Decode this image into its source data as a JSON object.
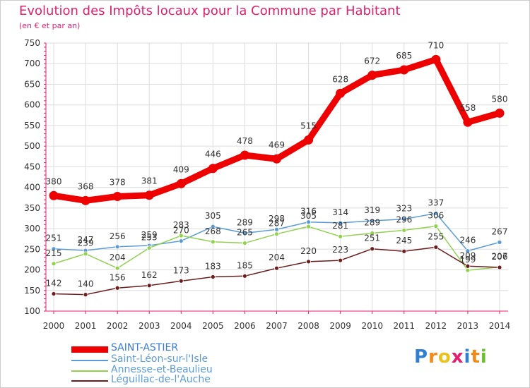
{
  "title": "Evolution des Impôts locaux pour la Commune par Habitant",
  "subtitle": "(en € et par an)",
  "logo": {
    "text": "Proxiti",
    "letters": [
      {
        "ch": "P",
        "color": "#2f7fd2"
      },
      {
        "ch": "r",
        "color": "#f08a1c"
      },
      {
        "ch": "o",
        "color": "#e9c21d"
      },
      {
        "ch": "x",
        "color": "#e0206e"
      },
      {
        "ch": "i",
        "color": "#2f7fd2"
      },
      {
        "ch": "t",
        "color": "#f08a1c"
      },
      {
        "ch": "i",
        "color": "#6cbf2e"
      }
    ]
  },
  "chart_data": {
    "type": "line",
    "title": "Evolution des Impôts locaux pour la Commune par Habitant",
    "subtitle": "(en € et par an)",
    "x": [
      "2000",
      "2001",
      "2002",
      "2003",
      "2004",
      "2005",
      "2006",
      "2007",
      "2008",
      "2009",
      "2010",
      "2011",
      "2012",
      "2013",
      "2014"
    ],
    "ylim": [
      100,
      750
    ],
    "yticks": [
      "100",
      "150",
      "200",
      "250",
      "300",
      "350",
      "400",
      "450",
      "500",
      "550",
      "600",
      "650",
      "700",
      "750"
    ],
    "grid": true,
    "legend": "bottom-left",
    "series": [
      {
        "name": "SAINT-ASTIER",
        "color": "#ee0000",
        "values": [
          380,
          368,
          378,
          381,
          409,
          446,
          478,
          469,
          515,
          628,
          672,
          685,
          710,
          558,
          580
        ],
        "labels": [
          "380",
          "368",
          "378",
          "381",
          "409",
          "446",
          "478",
          "469",
          "515",
          "628",
          "672",
          "685",
          "710",
          "558",
          "580"
        ]
      },
      {
        "name": "Saint-Léon-sur-l'Isle",
        "color": "#5b9bd5",
        "values": [
          251,
          247,
          256,
          259,
          270,
          305,
          289,
          298,
          316,
          314,
          319,
          323,
          337,
          246,
          267
        ],
        "labels": [
          "251",
          "247",
          "256",
          "259",
          "270",
          "305",
          "289",
          "298",
          "316",
          "314",
          "319",
          "323",
          "337",
          "246",
          "267"
        ]
      },
      {
        "name": "Annesse-et-Beaulieu",
        "color": "#92d050",
        "values": [
          215,
          239,
          204,
          253,
          283,
          268,
          265,
          287,
          305,
          281,
          289,
          296,
          306,
          199,
          207
        ],
        "labels": [
          "215",
          "239",
          "204",
          "253",
          "283",
          "268",
          "265",
          "287",
          "305",
          "281",
          "289",
          "296",
          "306",
          "199",
          "207"
        ]
      },
      {
        "name": "Léguillac-de-l'Auche",
        "color": "#6b1c1c",
        "values": [
          142,
          140,
          156,
          162,
          173,
          183,
          185,
          204,
          220,
          223,
          251,
          245,
          255,
          209,
          206
        ],
        "labels": [
          "142",
          "140",
          "156",
          "162",
          "173",
          "183",
          "185",
          "204",
          "220",
          "223",
          "251",
          "245",
          "255",
          "209",
          "206"
        ]
      }
    ]
  }
}
